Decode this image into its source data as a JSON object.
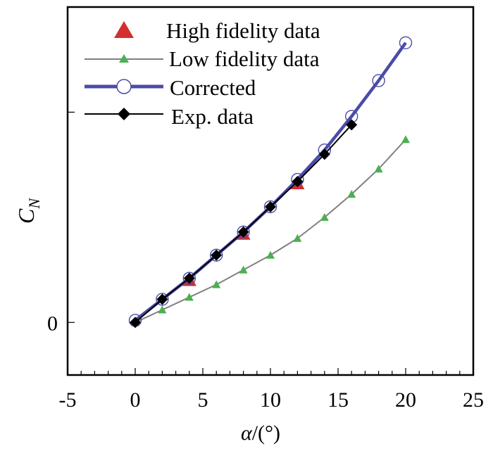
{
  "chart_data": {
    "type": "line",
    "title": "",
    "xlabel_symbol": "α",
    "xlabel_unit": "/(°)",
    "ylabel_symbol": "C",
    "ylabel_subscript": "N",
    "xlim": [
      -5,
      25
    ],
    "xticks": [
      -5,
      0,
      5,
      10,
      15,
      20,
      25
    ],
    "xtick_labels": [
      "-5",
      "0",
      "5",
      "10",
      "15",
      "20",
      "25"
    ],
    "ylim": [
      -0.25,
      1.5
    ],
    "yticks": [
      0
    ],
    "ytick_labels": [
      "0"
    ],
    "grid": false,
    "legend_position": "top-left",
    "series": [
      {
        "name": "High fidelity data",
        "style": "markers",
        "marker": "triangle",
        "color": "#d32f2f",
        "x": [
          4,
          8,
          12
        ],
        "y": [
          0.2,
          0.42,
          0.66
        ]
      },
      {
        "name": "Low fidelity data",
        "style": "line+markers",
        "marker": "small-triangle",
        "color": "#808080",
        "marker_color": "#4caf50",
        "x": [
          0,
          2,
          4,
          6,
          8,
          10,
          12,
          14,
          16,
          18,
          20
        ],
        "y": [
          0.0,
          0.06,
          0.12,
          0.18,
          0.25,
          0.32,
          0.4,
          0.5,
          0.61,
          0.73,
          0.87
        ]
      },
      {
        "name": "Corrected",
        "style": "line+markers",
        "marker": "circle",
        "color": "#4b4ba8",
        "x": [
          0,
          2,
          4,
          6,
          8,
          10,
          12,
          14,
          16,
          18,
          20
        ],
        "y": [
          0.01,
          0.11,
          0.21,
          0.32,
          0.43,
          0.55,
          0.68,
          0.82,
          0.98,
          1.15,
          1.33
        ]
      },
      {
        "name": "Exp. data",
        "style": "line+markers",
        "marker": "diamond",
        "color": "#000000",
        "x": [
          0,
          2,
          4,
          6,
          8,
          10,
          12,
          14,
          16
        ],
        "y": [
          0.0,
          0.11,
          0.21,
          0.32,
          0.43,
          0.55,
          0.67,
          0.8,
          0.94
        ]
      }
    ]
  }
}
